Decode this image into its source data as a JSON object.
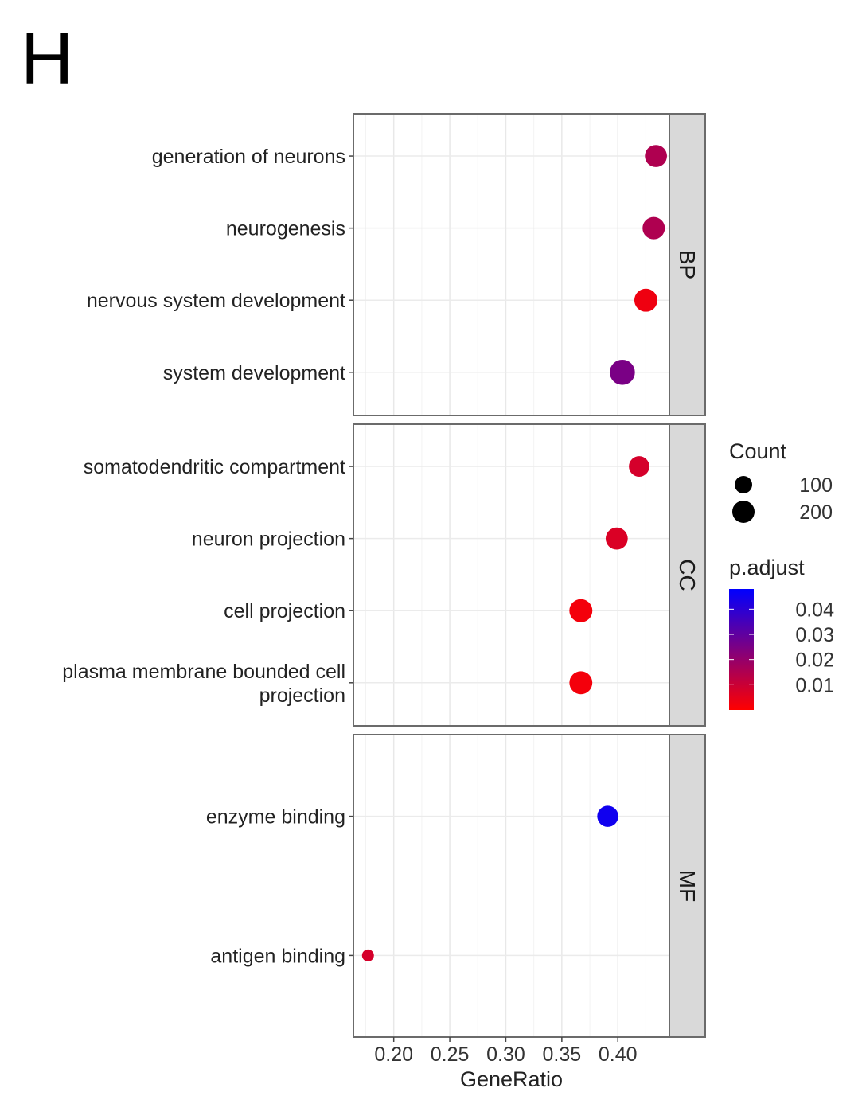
{
  "panel_label": "H",
  "chart_data": {
    "type": "scatter",
    "subtype": "dotplot-faceted",
    "xlabel": "GeneRatio",
    "ylabel": "",
    "xlim": [
      0.164,
      0.446
    ],
    "xticks": [
      0.2,
      0.25,
      0.3,
      0.35,
      0.4
    ],
    "xtick_labels": [
      "0.20",
      "0.25",
      "0.30",
      "0.35",
      "0.40"
    ],
    "grid": true,
    "facets": [
      {
        "name": "BP",
        "terms": [
          {
            "label": "generation of neurons",
            "gene_ratio": 0.434,
            "count": 160,
            "p_adjust": 0.015
          },
          {
            "label": "neurogenesis",
            "gene_ratio": 0.432,
            "count": 165,
            "p_adjust": 0.015
          },
          {
            "label": "nervous system development",
            "gene_ratio": 0.425,
            "count": 180,
            "p_adjust": 0.003
          },
          {
            "label": "system development",
            "gene_ratio": 0.404,
            "count": 230,
            "p_adjust": 0.025
          }
        ]
      },
      {
        "name": "CC",
        "terms": [
          {
            "label": "somatodendritic compartment",
            "gene_ratio": 0.419,
            "count": 130,
            "p_adjust": 0.008
          },
          {
            "label": "neuron projection",
            "gene_ratio": 0.399,
            "count": 160,
            "p_adjust": 0.007
          },
          {
            "label": "cell projection",
            "gene_ratio": 0.367,
            "count": 180,
            "p_adjust": 0.002
          },
          {
            "label": "plasma membrane bounded cell projection",
            "gene_ratio": 0.367,
            "count": 178,
            "p_adjust": 0.002
          }
        ]
      },
      {
        "name": "MF",
        "terms": [
          {
            "label": "enzyme binding",
            "gene_ratio": 0.391,
            "count": 140,
            "p_adjust": 0.045
          },
          {
            "label": "antigen binding",
            "gene_ratio": 0.177,
            "count": 20,
            "p_adjust": 0.008
          }
        ]
      }
    ],
    "legend": {
      "placement": "right",
      "size": {
        "title": "Count",
        "entries": [
          {
            "label": "100",
            "value": 100
          },
          {
            "label": "200",
            "value": 200
          }
        ]
      },
      "color": {
        "title": "p.adjust",
        "range": [
          0.0,
          0.048
        ],
        "ticks": [
          {
            "label": "0.04",
            "value": 0.04
          },
          {
            "label": "0.03",
            "value": 0.03
          },
          {
            "label": "0.02",
            "value": 0.02
          },
          {
            "label": "0.01",
            "value": 0.01
          }
        ],
        "low_color": "#ff0000",
        "high_color": "#0000ff"
      }
    }
  }
}
